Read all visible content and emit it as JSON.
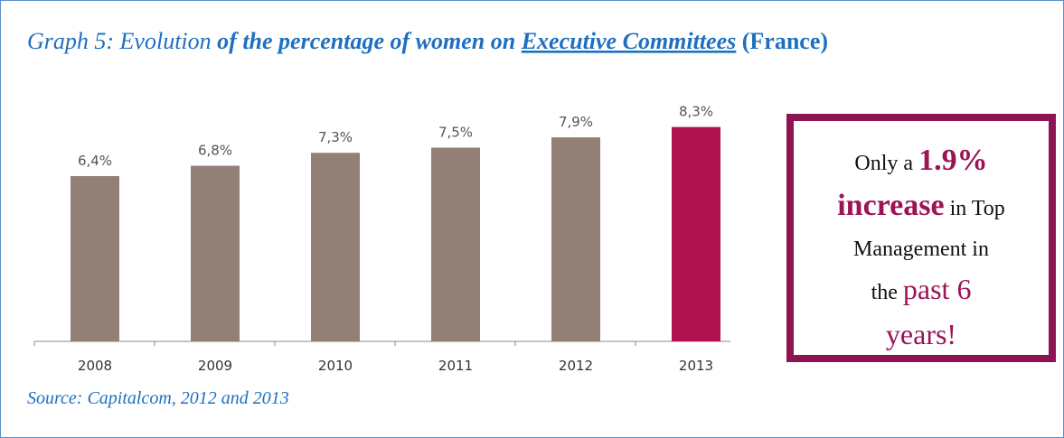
{
  "chart_data": {
    "type": "bar",
    "title_parts": [
      "Graph 5: Evolution ",
      "of the percentage of women on ",
      "Executive Committees",
      " (France)"
    ],
    "categories": [
      "2008",
      "2009",
      "2010",
      "2011",
      "2012",
      "2013"
    ],
    "values": [
      6.4,
      6.8,
      7.3,
      7.5,
      7.9,
      8.3
    ],
    "value_labels": [
      "6,4%",
      "6,8%",
      "7,3%",
      "7,5%",
      "7,9%",
      "8,3%"
    ],
    "colors": [
      "#927f76",
      "#927f76",
      "#927f76",
      "#927f76",
      "#927f76",
      "#b01250"
    ],
    "ylim": [
      0,
      10
    ],
    "source": "Source: Capitalcom, 2012 and 2013",
    "callout": {
      "lines": [
        [
          "Only a ",
          "1.9%"
        ],
        [
          "increase",
          " in Top"
        ],
        [
          "Management in"
        ],
        [
          "the ",
          "past 6"
        ],
        [
          "years!"
        ]
      ]
    }
  }
}
